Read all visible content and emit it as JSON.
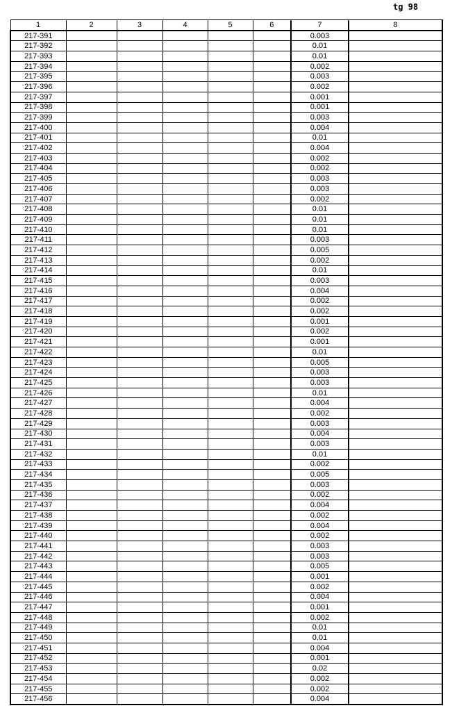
{
  "page_ref": "tg 98",
  "table": {
    "headers": [
      "1",
      "2",
      "3",
      "4",
      "5",
      "6",
      "7",
      "8"
    ],
    "rows": [
      [
        "217-391",
        "0.003"
      ],
      [
        "217-392",
        "0.01"
      ],
      [
        "217-393",
        "0.01"
      ],
      [
        "217-394",
        "0.002"
      ],
      [
        "217-395",
        "0.003"
      ],
      [
        "217-396",
        "0.002"
      ],
      [
        "217-397",
        "0.001"
      ],
      [
        "217-398",
        "0.001"
      ],
      [
        "217-399",
        "0.003"
      ],
      [
        "217-400",
        "0.004"
      ],
      [
        "217-401",
        "0.01"
      ],
      [
        "217-402",
        "0.004"
      ],
      [
        "217-403",
        "0.002"
      ],
      [
        "217-404",
        "0.002"
      ],
      [
        "217-405",
        "0.003"
      ],
      [
        "217-406",
        "0.003"
      ],
      [
        "217-407",
        "0.002"
      ],
      [
        "217-408",
        "0.01"
      ],
      [
        "217-409",
        "0.01"
      ],
      [
        "217-410",
        "0.01"
      ],
      [
        "217-411",
        "0.003"
      ],
      [
        "217-412",
        "0.005"
      ],
      [
        "217-413",
        "0.002"
      ],
      [
        "217-414",
        "0.01"
      ],
      [
        "217-415",
        "0.003"
      ],
      [
        "217-416",
        "0.004"
      ],
      [
        "217-417",
        "0.002"
      ],
      [
        "217-418",
        "0.002"
      ],
      [
        "217-419",
        "0.001"
      ],
      [
        "217-420",
        "0.002"
      ],
      [
        "217-421",
        "0.001"
      ],
      [
        "217-422",
        "0.01"
      ],
      [
        "217-423",
        "0.005"
      ],
      [
        "217-424",
        "0.003"
      ],
      [
        "217-425",
        "0.003"
      ],
      [
        "217-426",
        "0.01"
      ],
      [
        "217-427",
        "0.004"
      ],
      [
        "217-428",
        "0.002"
      ],
      [
        "217-429",
        "0.003"
      ],
      [
        "217-430",
        "0.004"
      ],
      [
        "217-431",
        "0.003"
      ],
      [
        "217-432",
        "0.01"
      ],
      [
        "217-433",
        "0.002"
      ],
      [
        "217-434",
        "0.005"
      ],
      [
        "217-435",
        "0.003"
      ],
      [
        "217-436",
        "0.002"
      ],
      [
        "217-437",
        "0.004"
      ],
      [
        "217-438",
        "0.002"
      ],
      [
        "217-439",
        "0.004"
      ],
      [
        "217-440",
        "0.002"
      ],
      [
        "217-441",
        "0.003"
      ],
      [
        "217-442",
        "0.003"
      ],
      [
        "217-443",
        "0.005"
      ],
      [
        "217-444",
        "0.001"
      ],
      [
        "217-445",
        "0.002"
      ],
      [
        "217-446",
        "0.004"
      ],
      [
        "217-447",
        "0.001"
      ],
      [
        "217-448",
        "0.002"
      ],
      [
        "217-449",
        "0.01"
      ],
      [
        "217-450",
        "0.01"
      ],
      [
        "217-451",
        "0.004"
      ],
      [
        "217-452",
        "0.001"
      ],
      [
        "217-453",
        "0.02"
      ],
      [
        "217-454",
        "0.002"
      ],
      [
        "217-455",
        "0.002"
      ],
      [
        "217-456",
        "0.004"
      ]
    ]
  }
}
